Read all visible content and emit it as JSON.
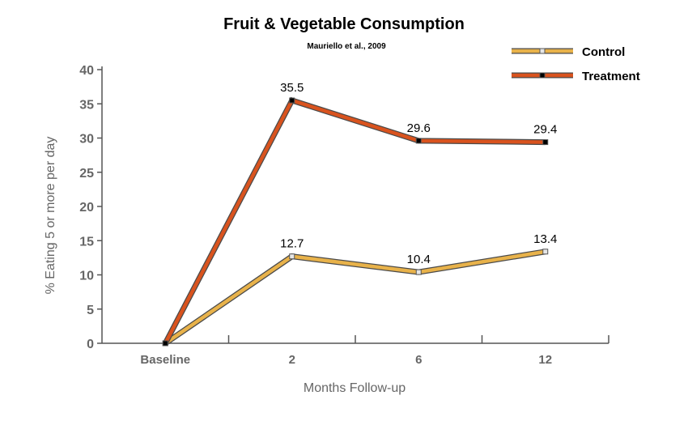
{
  "chart_data": {
    "type": "line",
    "title": "Fruit & Vegetable Consumption",
    "subtitle": "Mauriello et al., 2009",
    "xlabel": "Months Follow-up",
    "ylabel": "% Eating 5 or more per day",
    "categories": [
      "Baseline",
      "2",
      "6",
      "12"
    ],
    "ylim": [
      0,
      40
    ],
    "yticks": [
      0,
      5,
      10,
      15,
      20,
      25,
      30,
      35,
      40
    ],
    "grid": false,
    "legend_position": "top-right",
    "series": [
      {
        "name": "Control",
        "values": [
          0,
          12.7,
          10.4,
          13.4
        ],
        "labels": [
          "",
          "12.7",
          "10.4",
          "13.4"
        ],
        "color": "#e8b24a",
        "marker_color": "#e6e6e6"
      },
      {
        "name": "Treatment",
        "values": [
          0,
          35.5,
          29.6,
          29.4
        ],
        "labels": [
          "",
          "35.5",
          "29.6",
          "29.4"
        ],
        "color": "#d9531e",
        "marker_color": "#000000"
      }
    ]
  }
}
